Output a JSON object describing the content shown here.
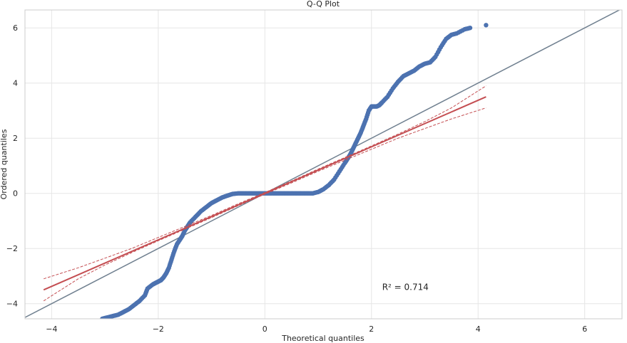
{
  "chart_data": {
    "type": "scatter",
    "title": "Q-Q Plot",
    "xlabel": "Theoretical quantiles",
    "ylabel": "Ordered quantiles",
    "xlim": [
      -4.5,
      6.7
    ],
    "ylim": [
      -4.55,
      6.65
    ],
    "xticks": [
      -4,
      -2,
      0,
      2,
      4,
      6
    ],
    "yticks": [
      -4,
      -2,
      0,
      2,
      4,
      6
    ],
    "xtick_labels": [
      "−4",
      "−2",
      "0",
      "2",
      "4",
      "6"
    ],
    "ytick_labels": [
      "−4",
      "−2",
      "0",
      "2",
      "4",
      "6"
    ],
    "grid": true,
    "annotation": {
      "text": "R² = 0.714",
      "x": 2.2,
      "y": -3.4
    },
    "colors": {
      "points": "#4c72b0",
      "fit": "#c44e52",
      "identity": "#708090",
      "grid": "#e6e6e6",
      "frame": "#cccccc"
    },
    "series": [
      {
        "kind": "points",
        "x": [
          -3.05,
          -2.95,
          -2.85,
          -2.75,
          -2.65,
          -2.55,
          -2.45,
          -2.35,
          -2.25,
          -2.2,
          -2.1,
          -2.05,
          -2.0,
          -1.95,
          -1.9,
          -1.85,
          -1.8,
          -1.75,
          -1.7,
          -1.65,
          -1.6,
          -1.55,
          -1.5,
          -1.45,
          -1.4,
          -1.3,
          -1.2,
          -1.1,
          -1.0,
          -0.9,
          -0.8,
          -0.7,
          -0.6,
          -0.5,
          -0.4,
          -0.3,
          -0.2,
          -0.1,
          0.0,
          0.1,
          0.2,
          0.3,
          0.4,
          0.5,
          0.6,
          0.7,
          0.8,
          0.9,
          1.0,
          1.1,
          1.2,
          1.3,
          1.4,
          1.5,
          1.55,
          1.6,
          1.65,
          1.7,
          1.75,
          1.8,
          1.85,
          1.9,
          1.95,
          2.0,
          2.05,
          2.1,
          2.15,
          2.2,
          2.3,
          2.4,
          2.5,
          2.6,
          2.7,
          2.8,
          2.9,
          3.0,
          3.1,
          3.2,
          3.3,
          3.4,
          3.5,
          3.6,
          3.75,
          3.85,
          4.15
        ],
        "y": [
          -4.55,
          -4.5,
          -4.45,
          -4.4,
          -4.3,
          -4.2,
          -4.05,
          -3.9,
          -3.7,
          -3.45,
          -3.3,
          -3.25,
          -3.2,
          -3.15,
          -3.05,
          -2.9,
          -2.7,
          -2.4,
          -2.1,
          -1.85,
          -1.7,
          -1.55,
          -1.35,
          -1.2,
          -1.05,
          -0.85,
          -0.65,
          -0.5,
          -0.35,
          -0.25,
          -0.15,
          -0.08,
          -0.02,
          0.0,
          0.0,
          0.0,
          0.0,
          0.0,
          0.0,
          0.0,
          0.0,
          0.0,
          0.0,
          0.0,
          0.0,
          0.0,
          0.0,
          0.0,
          0.05,
          0.15,
          0.3,
          0.5,
          0.8,
          1.1,
          1.25,
          1.4,
          1.6,
          1.8,
          2.0,
          2.2,
          2.45,
          2.7,
          3.0,
          3.15,
          3.15,
          3.15,
          3.2,
          3.3,
          3.5,
          3.8,
          4.05,
          4.25,
          4.35,
          4.45,
          4.6,
          4.7,
          4.75,
          4.95,
          5.3,
          5.6,
          5.75,
          5.8,
          5.95,
          6.0,
          6.1
        ]
      },
      {
        "kind": "fit",
        "x": [
          -4.15,
          4.15
        ],
        "y": [
          -3.5,
          3.5
        ]
      },
      {
        "kind": "band-upper",
        "x": [
          -4.15,
          -3.5,
          -3.0,
          -2.5,
          -2.0,
          -1.5,
          -1.0,
          -0.5,
          0.0,
          0.5,
          1.0,
          1.5,
          2.0,
          2.5,
          3.0,
          3.5,
          4.15
        ],
        "y": [
          -3.1,
          -2.7,
          -2.35,
          -2.0,
          -1.6,
          -1.2,
          -0.8,
          -0.38,
          0.03,
          0.45,
          0.88,
          1.3,
          1.72,
          2.15,
          2.6,
          3.1,
          3.9
        ]
      },
      {
        "kind": "band-lower",
        "x": [
          -4.15,
          -3.5,
          -3.0,
          -2.5,
          -2.0,
          -1.5,
          -1.0,
          -0.5,
          0.0,
          0.5,
          1.0,
          1.5,
          2.0,
          2.5,
          3.0,
          3.5,
          4.15
        ],
        "y": [
          -3.9,
          -3.1,
          -2.6,
          -2.15,
          -1.72,
          -1.3,
          -0.88,
          -0.45,
          -0.03,
          0.38,
          0.8,
          1.2,
          1.6,
          2.0,
          2.35,
          2.7,
          3.1
        ]
      },
      {
        "kind": "identity",
        "x": [
          -4.5,
          6.7
        ],
        "y": [
          -4.5,
          6.7
        ]
      }
    ]
  }
}
